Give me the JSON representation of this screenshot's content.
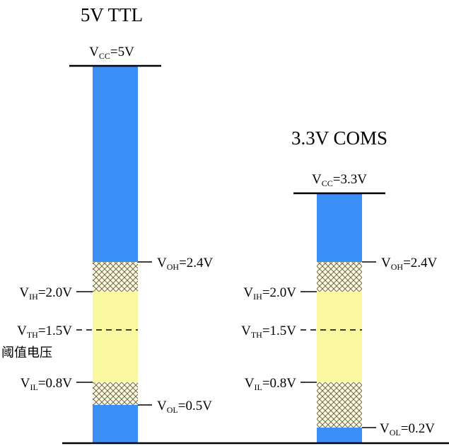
{
  "columns": [
    {
      "title": "5V TTL",
      "labels": [
        {
          "v": "V",
          "sub": "CC",
          "rest": "=5V"
        },
        {
          "v": "V",
          "sub": "OH",
          "rest": "=2.4V"
        },
        {
          "v": "V",
          "sub": "IH",
          "rest": "=2.0V"
        },
        {
          "v": "V",
          "sub": "TH",
          "rest": "=1.5V"
        },
        {
          "v": "V",
          "sub": "IL",
          "rest": "=0.8V"
        },
        {
          "v": "V",
          "sub": "OL",
          "rest": "=0.5V"
        }
      ]
    },
    {
      "title": "3.3V COMS",
      "labels": [
        {
          "v": "V",
          "sub": "CC",
          "rest": "=3.3V"
        },
        {
          "v": "V",
          "sub": "OH",
          "rest": "=2.4V"
        },
        {
          "v": "V",
          "sub": "IH",
          "rest": "=2.0V"
        },
        {
          "v": "V",
          "sub": "TH",
          "rest": "=1.5V"
        },
        {
          "v": "V",
          "sub": "IL",
          "rest": "=0.8V"
        },
        {
          "v": "V",
          "sub": "OL",
          "rest": "=0.2V"
        }
      ]
    }
  ],
  "note": "阈值电压"
}
